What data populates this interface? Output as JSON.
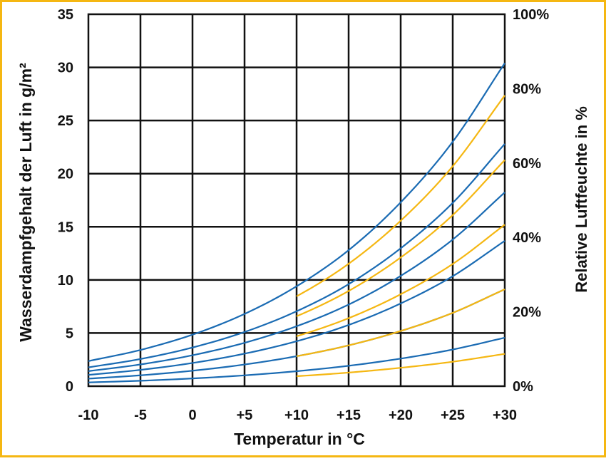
{
  "chart_data": {
    "type": "line",
    "title": "",
    "xlabel": "Temperatur in °C",
    "ylabel": "Wasserdampfgehalt der Luft in g/m²",
    "y2label": "Relative Luftfeuchte in %",
    "xlim": [
      -10,
      30
    ],
    "ylim": [
      0,
      35
    ],
    "y2lim": [
      0,
      100
    ],
    "x_tick_labels": [
      "-10",
      "-5",
      "0",
      "+5",
      "+10",
      "+15",
      "+20",
      "+25",
      "+30"
    ],
    "y_tick_labels": [
      "0",
      "5",
      "10",
      "15",
      "20",
      "25",
      "30",
      "35"
    ],
    "y2_tick_labels": [
      "0%",
      "20%",
      "40%",
      "60%",
      "80%",
      "100%"
    ],
    "grid": true,
    "colors": {
      "blue": "#1a6bb3",
      "yellow": "#f5b712",
      "frame": "#f5b712",
      "grid": "#111111"
    },
    "x": [
      -10,
      -5,
      0,
      5,
      10,
      15,
      20,
      25,
      30
    ],
    "saturation_values": [
      2.36,
      3.41,
      4.85,
      6.8,
      9.4,
      12.8,
      17.3,
      23.0,
      30.4
    ],
    "series": [
      {
        "rh": 0.15,
        "color": "blue"
      },
      {
        "rh": 0.3,
        "color": "blue"
      },
      {
        "rh": 0.45,
        "color": "blue"
      },
      {
        "rh": 0.6,
        "color": "blue"
      },
      {
        "rh": 0.75,
        "color": "blue"
      },
      {
        "rh": 1.0,
        "color": "blue"
      },
      {
        "rh": 0.1,
        "color": "yellow",
        "x_start": 10
      },
      {
        "rh": 0.3,
        "color": "yellow",
        "x_start": 10
      },
      {
        "rh": 0.5,
        "color": "yellow",
        "x_start": 10
      },
      {
        "rh": 0.7,
        "color": "yellow",
        "x_start": 10
      },
      {
        "rh": 0.9,
        "color": "yellow",
        "x_start": 10
      }
    ]
  }
}
